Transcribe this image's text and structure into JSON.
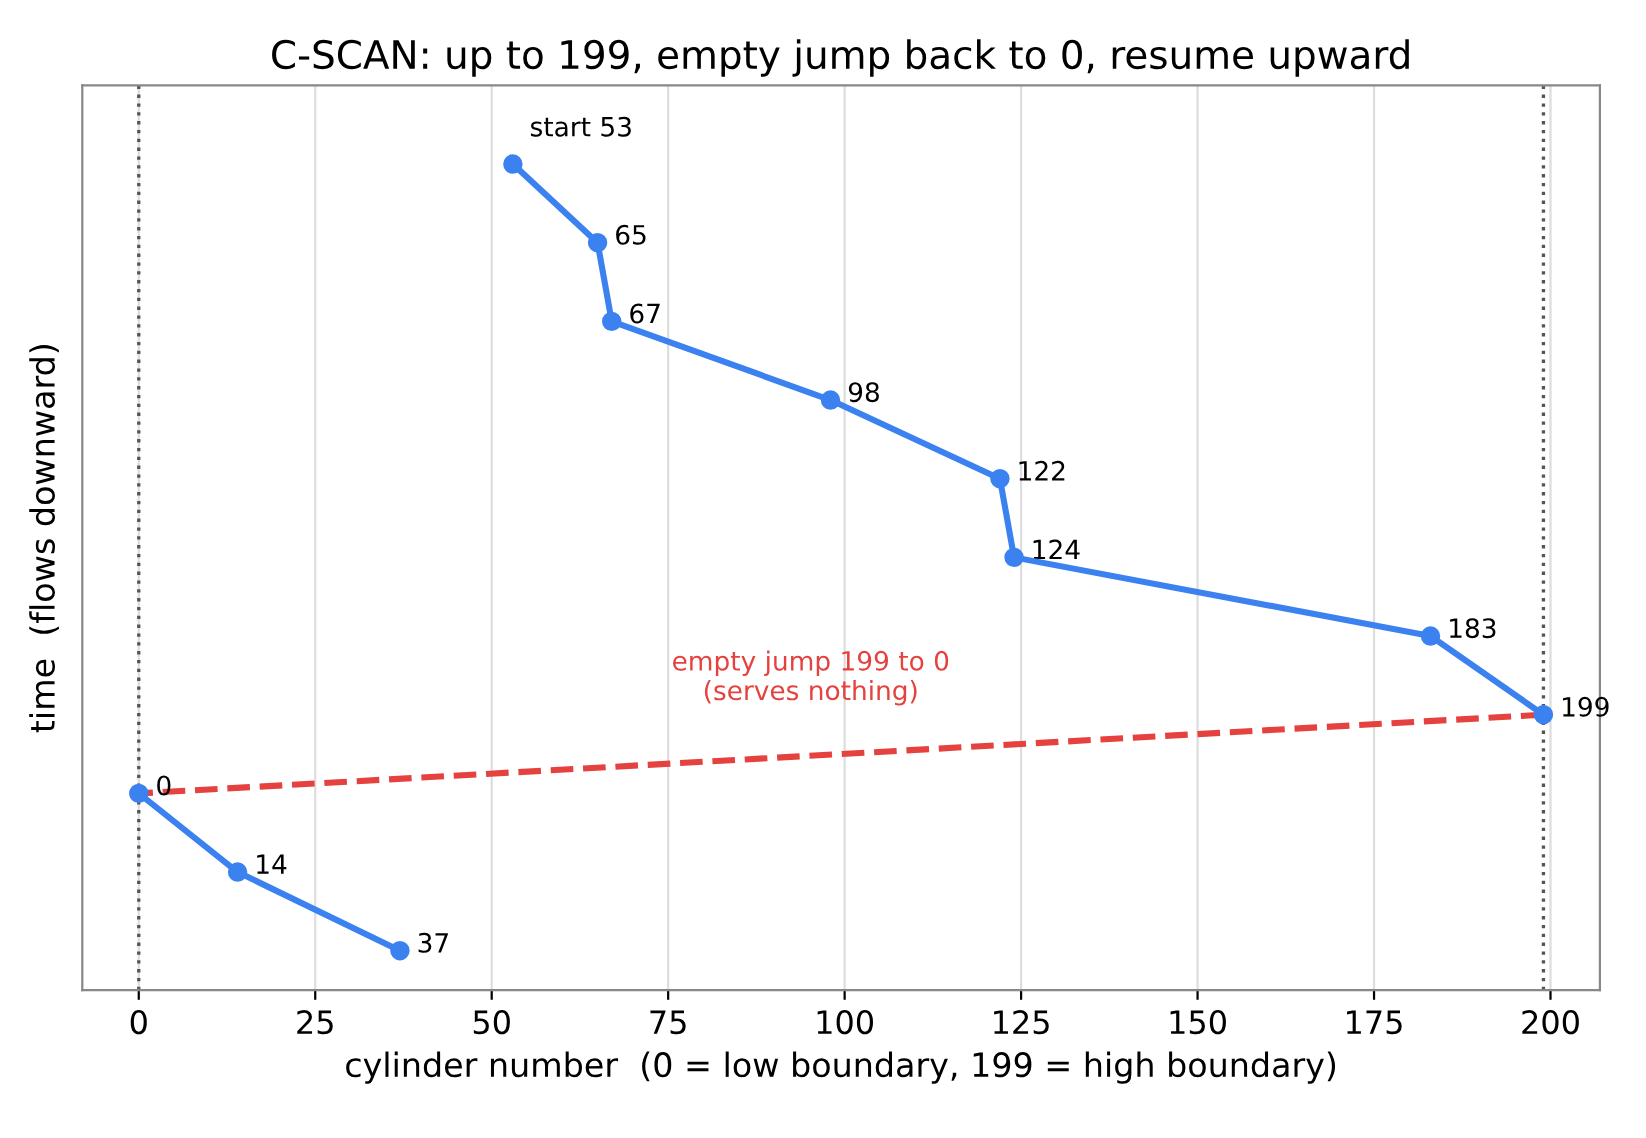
{
  "chart_data": {
    "type": "line",
    "orientation": "horizontal",
    "title": "C-SCAN: up to 199, empty jump back to 0, resume upward",
    "xlabel": "cylinder number  (0 = low boundary, 199 = high boundary)",
    "ylabel": "time  (flows downward)",
    "categories": [
      null,
      null,
      null,
      null,
      null,
      null,
      null,
      null,
      null,
      null,
      null
    ],
    "series": [
      {
        "values": [
          53,
          65,
          67,
          98,
          122,
          124,
          183,
          199,
          null,
          null,
          null
        ],
        "color": "#3b82f0",
        "line_style": "solid",
        "marker": "circle",
        "value_labels": [
          "start 53",
          "65",
          "67",
          "98",
          "122",
          "124",
          "183",
          "199",
          null,
          null,
          null
        ]
      },
      {
        "values": [
          null,
          null,
          null,
          null,
          null,
          null,
          null,
          199,
          0,
          null,
          null
        ],
        "color": "#e5413e",
        "line_style": "dashed",
        "marker": "none"
      },
      {
        "values": [
          null,
          null,
          null,
          null,
          null,
          null,
          null,
          null,
          0,
          14,
          37
        ],
        "color": "#3b82f0",
        "line_style": "solid",
        "marker": "circle",
        "value_labels": [
          null,
          null,
          null,
          null,
          null,
          null,
          null,
          null,
          "0",
          "14",
          "37"
        ]
      }
    ],
    "annotations": [
      "empty jump 199 to 0\n(serves nothing)"
    ],
    "ref_lines": [
      {
        "axis": "x",
        "value": 0,
        "color": "#555555",
        "line_style": "dotted"
      },
      {
        "axis": "x",
        "value": 199,
        "color": "#555555",
        "line_style": "dotted"
      }
    ],
    "xlim": [
      -8,
      207
    ],
    "xticks": [
      0,
      25,
      50,
      75,
      100,
      125,
      150,
      175,
      200
    ],
    "grid": "x",
    "legend": false
  }
}
